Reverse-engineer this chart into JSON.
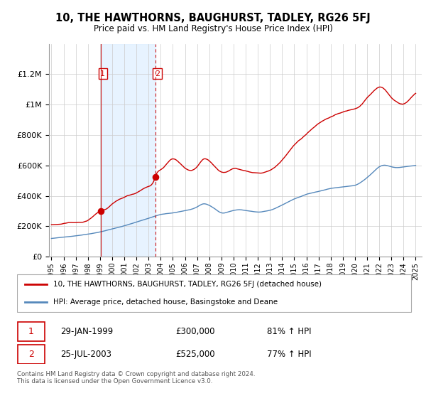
{
  "title": "10, THE HAWTHORNS, BAUGHURST, TADLEY, RG26 5FJ",
  "subtitle": "Price paid vs. HM Land Registry's House Price Index (HPI)",
  "footer": "Contains HM Land Registry data © Crown copyright and database right 2024.\nThis data is licensed under the Open Government Licence v3.0.",
  "legend_line1": "10, THE HAWTHORNS, BAUGHURST, TADLEY, RG26 5FJ (detached house)",
  "legend_line2": "HPI: Average price, detached house, Basingstoke and Deane",
  "transaction1_label": "1",
  "transaction1_date": "29-JAN-1999",
  "transaction1_price": "£300,000",
  "transaction1_hpi": "81% ↑ HPI",
  "transaction2_label": "2",
  "transaction2_date": "25-JUL-2003",
  "transaction2_price": "£525,000",
  "transaction2_hpi": "77% ↑ HPI",
  "red_color": "#cc0000",
  "blue_color": "#5588bb",
  "shade_color": "#ddeeff",
  "background_plot": "#ffffff",
  "grid_color": "#cccccc",
  "ylim": [
    0,
    1400000
  ],
  "yticks": [
    0,
    200000,
    400000,
    600000,
    800000,
    1000000,
    1200000
  ],
  "ytick_labels": [
    "£0",
    "£200K",
    "£400K",
    "£600K",
    "£800K",
    "£1M",
    "£1.2M"
  ],
  "transaction1_year": 1999.083,
  "transaction1_value": 300000,
  "transaction2_year": 2003.56,
  "transaction2_value": 525000,
  "vline1_year": 1999.083,
  "vline2_year": 2003.56,
  "xlim_left": 1994.8,
  "xlim_right": 2025.5,
  "xtick_years": [
    1995,
    1996,
    1997,
    1998,
    1999,
    2000,
    2001,
    2002,
    2003,
    2004,
    2005,
    2006,
    2007,
    2008,
    2009,
    2010,
    2011,
    2012,
    2013,
    2014,
    2015,
    2016,
    2017,
    2018,
    2019,
    2020,
    2021,
    2022,
    2023,
    2024,
    2025
  ]
}
